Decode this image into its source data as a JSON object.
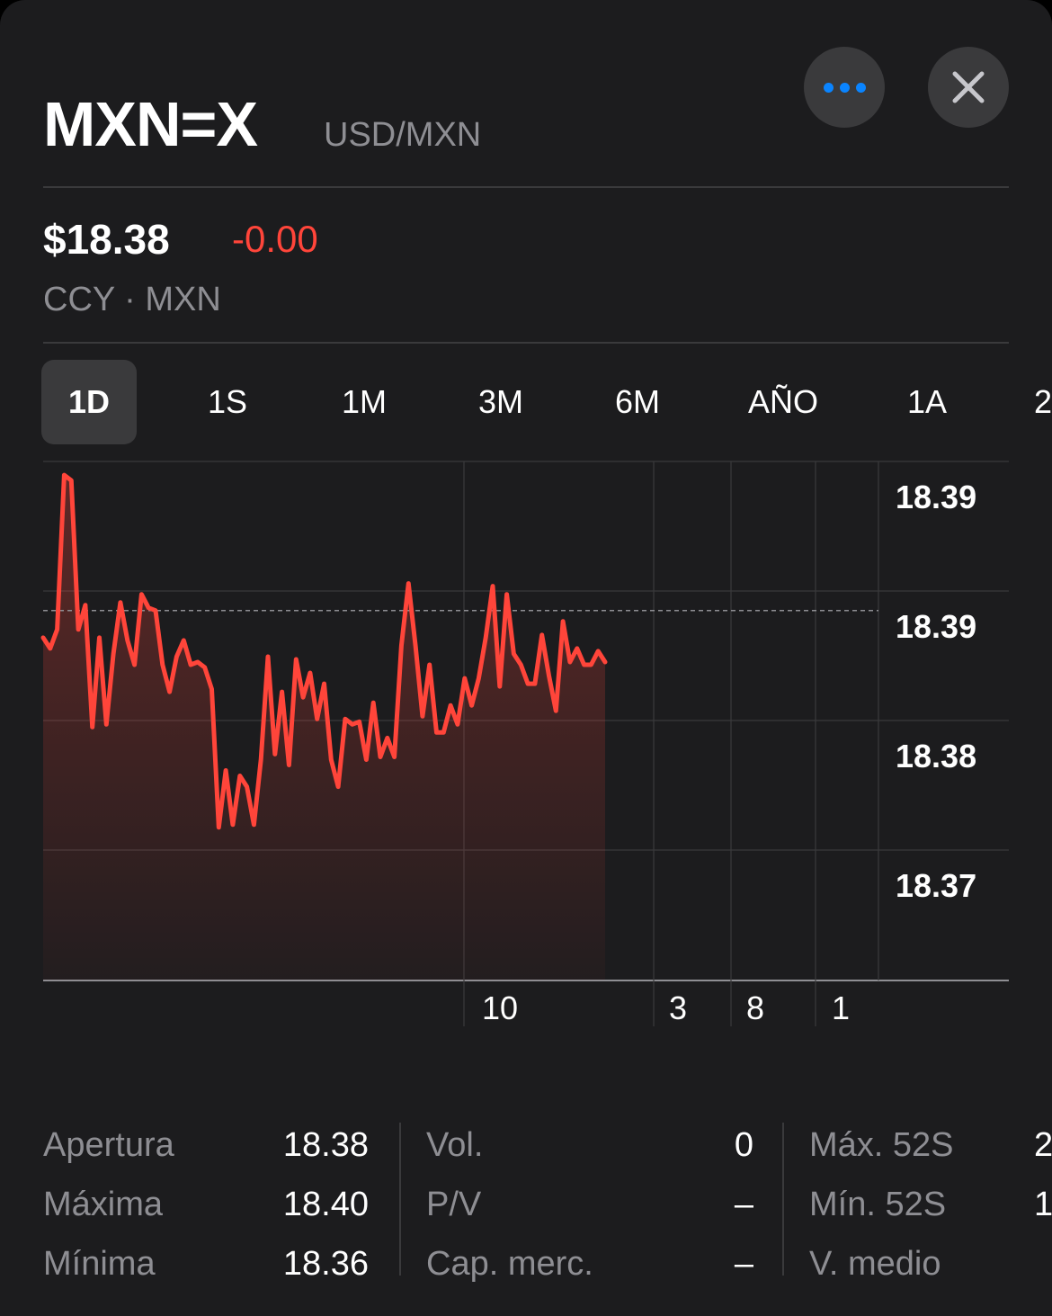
{
  "header": {
    "symbol": "MXN=X",
    "pair": "USD/MXN",
    "more_icon": "ellipsis-icon",
    "close_icon": "close-icon"
  },
  "quote": {
    "price": "$18.38",
    "change": "-0.00",
    "meta": "CCY · MXN"
  },
  "colors": {
    "accent": "#0a84ff",
    "negative": "#ff453a",
    "background": "#1c1c1e"
  },
  "tabs": [
    {
      "label": "1D",
      "active": true
    },
    {
      "label": "1S"
    },
    {
      "label": "1M"
    },
    {
      "label": "3M"
    },
    {
      "label": "6M"
    },
    {
      "label": "AÑO"
    },
    {
      "label": "1A"
    },
    {
      "label": "2"
    }
  ],
  "chart_data": {
    "type": "line",
    "series": [
      {
        "values": [
          18.3875,
          18.3871,
          18.3878,
          18.3935,
          18.3933,
          18.3878,
          18.3887,
          18.3842,
          18.3875,
          18.3843,
          18.3869,
          18.3888,
          18.3874,
          18.3865,
          18.3891,
          18.3886,
          18.3885,
          18.3865,
          18.3855,
          18.3868,
          18.3874,
          18.3865,
          18.3866,
          18.3864,
          18.3856,
          18.3805,
          18.3826,
          18.3806,
          18.3824,
          18.382,
          18.3806,
          18.383,
          18.3868,
          18.3832,
          18.3855,
          18.3828,
          18.3867,
          18.3853,
          18.3862,
          18.3845,
          18.3858,
          18.383,
          18.382,
          18.3845,
          18.3843,
          18.3844,
          18.383,
          18.3851,
          18.3831,
          18.3838,
          18.3831,
          18.3872,
          18.3895,
          18.3872,
          18.3846,
          18.3865,
          18.384,
          18.384,
          18.385,
          18.3843,
          18.386,
          18.385,
          18.386,
          18.3875,
          18.3894,
          18.3857,
          18.3891,
          18.3869,
          18.3865,
          18.3858,
          18.3858,
          18.3876,
          18.3861,
          18.3848,
          18.3881,
          18.3866,
          18.3871,
          18.3865,
          18.3865,
          18.387,
          18.3866
        ],
        "color": "#ff453a"
      }
    ],
    "previous_close": 18.3885,
    "y_ticks": [
      "18.39",
      "18.39",
      "18.38",
      "18.37"
    ],
    "x_ticks": [
      "10",
      "3",
      "8",
      "1"
    ],
    "grid": true
  },
  "stats": {
    "col1": [
      {
        "label": "Apertura",
        "value": "18.38"
      },
      {
        "label": "Máxima",
        "value": "18.40"
      },
      {
        "label": "Mínima",
        "value": "18.36"
      }
    ],
    "col2": [
      {
        "label": "Vol.",
        "value": "0"
      },
      {
        "label": "P/V",
        "value": "–"
      },
      {
        "label": "Cap. merc.",
        "value": "–"
      }
    ],
    "col3": [
      {
        "label": "Máx. 52S",
        "value": "2"
      },
      {
        "label": "Mín. 52S",
        "value": "1"
      },
      {
        "label": "V. medio",
        "value": ""
      }
    ]
  }
}
